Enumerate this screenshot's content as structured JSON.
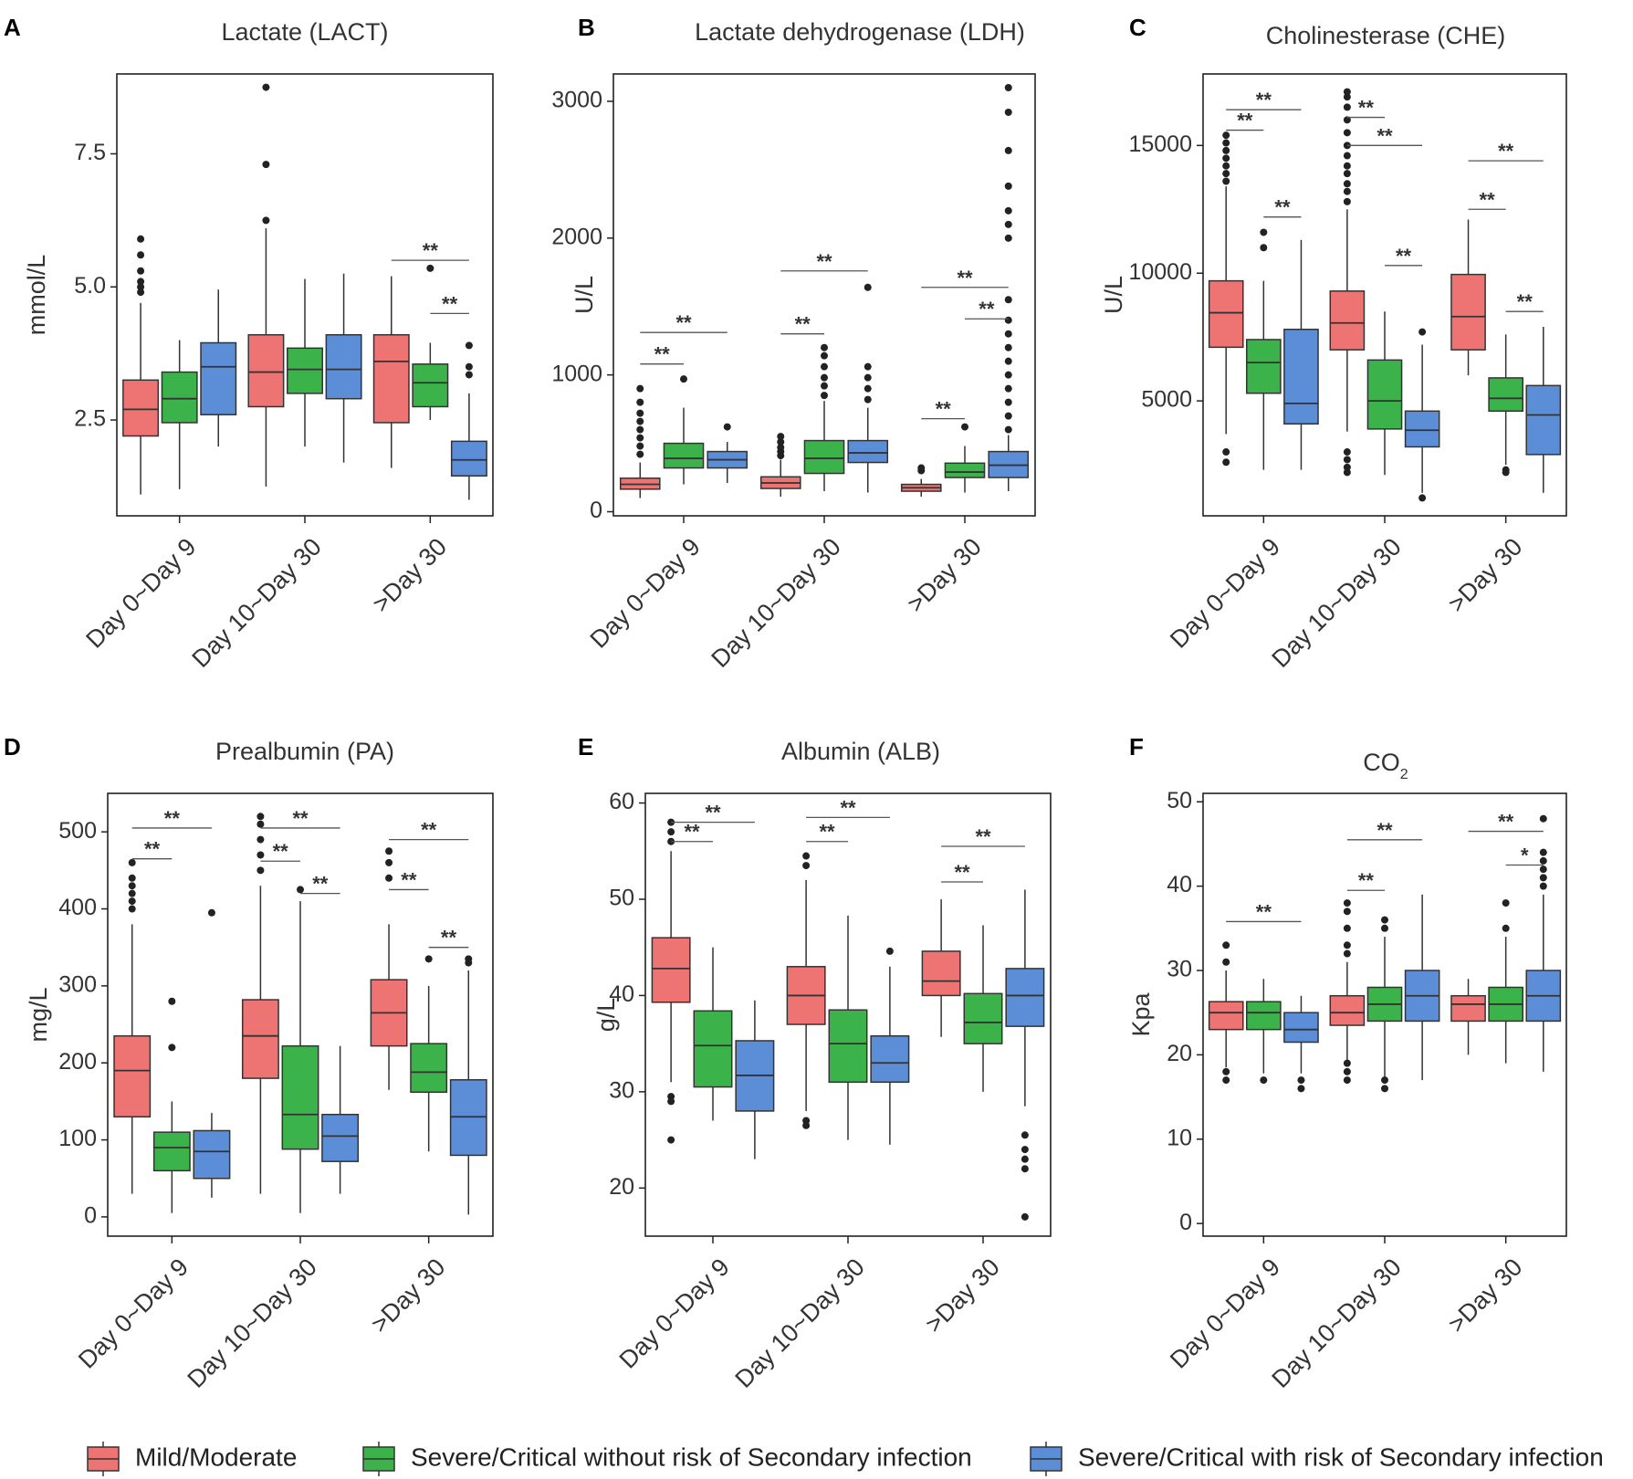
{
  "legend": {
    "items": [
      {
        "label": "Mild/Moderate",
        "color": "#EE7474"
      },
      {
        "label": "Severe/Critical without risk of Secondary infection",
        "color": "#3CB34A"
      },
      {
        "label": "Severe/Critical with risk of Secondary infection",
        "color": "#5B8ED6"
      }
    ]
  },
  "chart_data": [
    {
      "type": "boxplot",
      "letter": "A",
      "title": "Lactate (LACT)",
      "title_sub": "",
      "ylabel": "mmol/L",
      "ylim": [
        0.7,
        9.0
      ],
      "yticks": [
        2.5,
        5.0,
        7.5
      ],
      "ytick_labels": [
        "2.5",
        "5.0",
        "7.5"
      ],
      "categories": [
        "Day 0~Day 9",
        "Day 10~Day 30",
        ">Day 30"
      ],
      "boxes": [
        [
          [
            1.1,
            2.2,
            2.7,
            3.25,
            4.7,
            [
              4.9,
              5.0,
              5.1,
              5.3,
              5.6,
              5.9
            ]
          ],
          [
            1.2,
            2.45,
            2.9,
            3.4,
            4.0,
            []
          ],
          [
            2.0,
            2.6,
            3.5,
            3.95,
            4.95,
            []
          ]
        ],
        [
          [
            1.25,
            2.75,
            3.4,
            4.1,
            6.1,
            [
              6.25,
              7.3,
              8.75
            ]
          ],
          [
            2.0,
            3.0,
            3.45,
            3.85,
            5.15,
            []
          ],
          [
            1.7,
            2.9,
            3.45,
            4.1,
            5.25,
            []
          ]
        ],
        [
          [
            1.6,
            2.45,
            3.6,
            4.1,
            5.2,
            []
          ],
          [
            2.5,
            2.75,
            3.2,
            3.55,
            3.95,
            [
              5.35
            ]
          ],
          [
            1.0,
            1.45,
            1.75,
            2.1,
            3.0,
            [
              3.35,
              3.5,
              3.9
            ]
          ]
        ]
      ],
      "annotations": [
        {
          "group": 2,
          "from": 0,
          "to": 2,
          "y": 5.5,
          "label": "**"
        },
        {
          "group": 2,
          "from": 1,
          "to": 2,
          "y": 4.5,
          "label": "**"
        }
      ]
    },
    {
      "type": "boxplot",
      "letter": "B",
      "title": "Lactate dehydrogenase (LDH)",
      "title_sub": "",
      "ylabel": "U/L",
      "ylim": [
        -30,
        3200
      ],
      "yticks": [
        0,
        1000,
        2000,
        3000
      ],
      "ytick_labels": [
        "0",
        "1000",
        "2000",
        "3000"
      ],
      "categories": [
        "Day 0~Day 9",
        "Day 10~Day 30",
        ">Day 30"
      ],
      "boxes": [
        [
          [
            100,
            165,
            200,
            245,
            360,
            [
              420,
              480,
              540,
              600,
              660,
              720,
              800,
              900
            ]
          ],
          [
            200,
            320,
            390,
            500,
            760,
            [
              970
            ]
          ],
          [
            210,
            320,
            380,
            440,
            510,
            [
              620
            ]
          ]
        ],
        [
          [
            110,
            170,
            210,
            255,
            380,
            [
              410,
              440,
              470,
              510,
              550
            ]
          ],
          [
            150,
            280,
            390,
            520,
            810,
            [
              850,
              920,
              980,
              1060,
              1140,
              1200
            ]
          ],
          [
            140,
            360,
            430,
            520,
            760,
            [
              820,
              900,
              980,
              1060,
              1640
            ]
          ]
        ],
        [
          [
            110,
            150,
            175,
            200,
            240,
            [
              300,
              320
            ]
          ],
          [
            140,
            250,
            290,
            355,
            480,
            [
              620
            ]
          ],
          [
            150,
            250,
            340,
            440,
            560,
            [
              600,
              700,
              800,
              900,
              1000,
              1100,
              1200,
              1300,
              1400,
              1550,
              2000,
              2100,
              2200,
              2380,
              2640,
              2920,
              3100
            ]
          ]
        ]
      ],
      "annotations": [
        {
          "group": 0,
          "from": 0,
          "to": 2,
          "y": 1310,
          "label": "**"
        },
        {
          "group": 0,
          "from": 0,
          "to": 1,
          "y": 1080,
          "label": "**"
        },
        {
          "group": 1,
          "from": 0,
          "to": 2,
          "y": 1760,
          "label": "**"
        },
        {
          "group": 1,
          "from": 0,
          "to": 1,
          "y": 1300,
          "label": "**"
        },
        {
          "group": 2,
          "from": 0,
          "to": 2,
          "y": 1640,
          "label": "**"
        },
        {
          "group": 2,
          "from": 1,
          "to": 2,
          "y": 1410,
          "label": "**"
        },
        {
          "group": 2,
          "from": 0,
          "to": 1,
          "y": 680,
          "label": "**"
        }
      ]
    },
    {
      "type": "boxplot",
      "letter": "C",
      "title": "Cholinesterase (CHE)",
      "title_sub": "",
      "ylabel": "U/L",
      "ylim": [
        500,
        17800
      ],
      "yticks": [
        5000,
        10000,
        15000
      ],
      "ytick_labels": [
        "5000",
        "10000",
        "15000"
      ],
      "categories": [
        "Day 0~Day 9",
        "Day 10~Day 30",
        ">Day 30"
      ],
      "boxes": [
        [
          [
            3700,
            7100,
            8450,
            9700,
            13400,
            [
              2600,
              3000,
              13600,
              13900,
              14200,
              14500,
              14800,
              15100,
              15400
            ]
          ],
          [
            2300,
            5300,
            6500,
            7400,
            9700,
            [
              11000,
              11600
            ]
          ],
          [
            2300,
            4100,
            4900,
            7800,
            11300,
            []
          ]
        ],
        [
          [
            3800,
            7000,
            8050,
            9300,
            12500,
            [
              2200,
              2400,
              2700,
              3000,
              12800,
              13200,
              13500,
              13900,
              14200,
              14600,
              15000,
              15500,
              16000,
              16500,
              16900,
              17100
            ]
          ],
          [
            2100,
            3900,
            5000,
            6600,
            8500,
            []
          ],
          [
            1400,
            3200,
            3850,
            4600,
            7200,
            [
              1200,
              7700
            ]
          ]
        ],
        [
          [
            6000,
            7000,
            8300,
            9950,
            12100,
            []
          ],
          [
            2500,
            4600,
            5100,
            5900,
            7600,
            [
              2300,
              2200
            ]
          ],
          [
            1400,
            2900,
            4450,
            5600,
            7900,
            []
          ]
        ]
      ],
      "annotations": [
        {
          "group": 0,
          "from": 0,
          "to": 2,
          "y": 16400,
          "label": "**"
        },
        {
          "group": 0,
          "from": 0,
          "to": 1,
          "y": 15600,
          "label": "**"
        },
        {
          "group": 0,
          "from": 1,
          "to": 2,
          "y": 12200,
          "label": "**"
        },
        {
          "group": 1,
          "from": 0,
          "to": 1,
          "y": 16100,
          "label": "**"
        },
        {
          "group": 1,
          "from": 0,
          "to": 2,
          "y": 15000,
          "label": "**"
        },
        {
          "group": 1,
          "from": 1,
          "to": 2,
          "y": 10300,
          "label": "**"
        },
        {
          "group": 2,
          "from": 0,
          "to": 2,
          "y": 14400,
          "label": "**"
        },
        {
          "group": 2,
          "from": 0,
          "to": 1,
          "y": 12500,
          "label": "**"
        },
        {
          "group": 2,
          "from": 1,
          "to": 2,
          "y": 8500,
          "label": "**"
        }
      ]
    },
    {
      "type": "boxplot",
      "letter": "D",
      "title": "Prealbumin (PA)",
      "title_sub": "",
      "ylabel": "mg/L",
      "ylim": [
        -25,
        550
      ],
      "yticks": [
        0,
        100,
        200,
        300,
        400,
        500
      ],
      "ytick_labels": [
        "0",
        "100",
        "200",
        "300",
        "400",
        "500"
      ],
      "categories": [
        "Day 0~Day 9",
        "Day 10~Day 30",
        ">Day 30"
      ],
      "boxes": [
        [
          [
            30,
            130,
            190,
            235,
            380,
            [
              400,
              410,
              420,
              430,
              440,
              460
            ]
          ],
          [
            5,
            60,
            90,
            110,
            150,
            [
              220,
              280
            ]
          ],
          [
            25,
            50,
            85,
            112,
            135,
            [
              395
            ]
          ]
        ],
        [
          [
            30,
            180,
            235,
            282,
            430,
            [
              450,
              470,
              490,
              510,
              520
            ]
          ],
          [
            5,
            88,
            133,
            222,
            410,
            [
              425
            ]
          ],
          [
            30,
            72,
            105,
            133,
            222,
            []
          ]
        ],
        [
          [
            165,
            222,
            265,
            308,
            380,
            [
              440,
              460,
              475
            ]
          ],
          [
            85,
            162,
            188,
            225,
            300,
            [
              335
            ]
          ],
          [
            3,
            80,
            130,
            178,
            320,
            [
              330,
              335
            ]
          ]
        ]
      ],
      "annotations": [
        {
          "group": 0,
          "from": 0,
          "to": 2,
          "y": 505,
          "label": "**"
        },
        {
          "group": 0,
          "from": 0,
          "to": 1,
          "y": 465,
          "label": "**"
        },
        {
          "group": 1,
          "from": 0,
          "to": 2,
          "y": 505,
          "label": "**"
        },
        {
          "group": 1,
          "from": 0,
          "to": 1,
          "y": 462,
          "label": "**"
        },
        {
          "group": 1,
          "from": 1,
          "to": 2,
          "y": 420,
          "label": "**"
        },
        {
          "group": 2,
          "from": 0,
          "to": 2,
          "y": 490,
          "label": "**"
        },
        {
          "group": 2,
          "from": 0,
          "to": 1,
          "y": 425,
          "label": "**"
        },
        {
          "group": 2,
          "from": 1,
          "to": 2,
          "y": 350,
          "label": "**"
        }
      ]
    },
    {
      "type": "boxplot",
      "letter": "E",
      "title": "Albumin (ALB)",
      "title_sub": "",
      "ylabel": "g/L",
      "ylim": [
        15,
        61
      ],
      "yticks": [
        20,
        30,
        40,
        50,
        60
      ],
      "ytick_labels": [
        "20",
        "30",
        "40",
        "50",
        "60"
      ],
      "categories": [
        "Day 0~Day 9",
        "Day 10~Day 30",
        ">Day 30"
      ],
      "boxes": [
        [
          [
            31,
            39.3,
            42.8,
            46,
            55,
            [
              25,
              29,
              29.5,
              56,
              57,
              58
            ]
          ],
          [
            27,
            30.5,
            34.8,
            38.4,
            45,
            []
          ],
          [
            23,
            28,
            31.7,
            35.3,
            39.5,
            []
          ]
        ],
        [
          [
            28,
            37,
            40,
            43,
            52,
            [
              26.5,
              27,
              53.5,
              54.5
            ]
          ],
          [
            25,
            31,
            35,
            38.5,
            48.3,
            []
          ],
          [
            24.5,
            31,
            33,
            35.8,
            43,
            [
              44.6
            ]
          ]
        ],
        [
          [
            35.7,
            40,
            41.5,
            44.6,
            50,
            []
          ],
          [
            30,
            35,
            37.2,
            40.2,
            47.3,
            []
          ],
          [
            28.5,
            36.8,
            40,
            42.8,
            51,
            [
              17,
              22,
              23,
              24,
              25.5
            ]
          ]
        ]
      ],
      "annotations": [
        {
          "group": 0,
          "from": 0,
          "to": 2,
          "y": 58,
          "label": "**"
        },
        {
          "group": 0,
          "from": 0,
          "to": 1,
          "y": 56,
          "label": "**"
        },
        {
          "group": 1,
          "from": 0,
          "to": 2,
          "y": 58.5,
          "label": "**"
        },
        {
          "group": 1,
          "from": 0,
          "to": 1,
          "y": 56,
          "label": "**"
        },
        {
          "group": 2,
          "from": 0,
          "to": 2,
          "y": 55.5,
          "label": "**"
        },
        {
          "group": 2,
          "from": 0,
          "to": 1,
          "y": 51.8,
          "label": "**"
        }
      ]
    },
    {
      "type": "boxplot",
      "letter": "F",
      "title": "CO",
      "title_sub": "2",
      "ylabel": "Kpa",
      "ylim": [
        -1.5,
        51
      ],
      "yticks": [
        0,
        10,
        20,
        30,
        40,
        50
      ],
      "ytick_labels": [
        "0",
        "10",
        "20",
        "30",
        "40",
        "50"
      ],
      "categories": [
        "Day 0~Day 9",
        "Day 10~Day 30",
        ">Day 30"
      ],
      "boxes": [
        [
          [
            18.5,
            23,
            25,
            26.3,
            30,
            [
              17,
              18,
              31,
              33
            ]
          ],
          [
            17.8,
            23,
            25,
            26.3,
            29,
            [
              17
            ]
          ],
          [
            17.8,
            21.5,
            23,
            25,
            27,
            [
              16,
              17
            ]
          ]
        ],
        [
          [
            19,
            23.5,
            25,
            27,
            31,
            [
              17,
              18,
              19,
              32,
              33,
              35,
              37,
              38
            ]
          ],
          [
            17,
            24,
            26,
            28,
            34,
            [
              16,
              17,
              35,
              36
            ]
          ],
          [
            17,
            24,
            27,
            30,
            39,
            []
          ]
        ],
        [
          [
            20,
            24,
            26,
            27,
            29,
            []
          ],
          [
            19,
            24,
            26,
            28,
            34,
            [
              35,
              38
            ]
          ],
          [
            18,
            24,
            27,
            30,
            39,
            [
              40,
              41,
              42,
              43,
              44,
              48
            ]
          ]
        ]
      ],
      "annotations": [
        {
          "group": 0,
          "from": 0,
          "to": 2,
          "y": 35.8,
          "label": "**"
        },
        {
          "group": 1,
          "from": 0,
          "to": 2,
          "y": 45.5,
          "label": "**"
        },
        {
          "group": 1,
          "from": 0,
          "to": 1,
          "y": 39.5,
          "label": "**"
        },
        {
          "group": 2,
          "from": 0,
          "to": 2,
          "y": 46.5,
          "label": "**"
        },
        {
          "group": 2,
          "from": 1,
          "to": 2,
          "y": 42.5,
          "label": "*"
        }
      ]
    }
  ]
}
